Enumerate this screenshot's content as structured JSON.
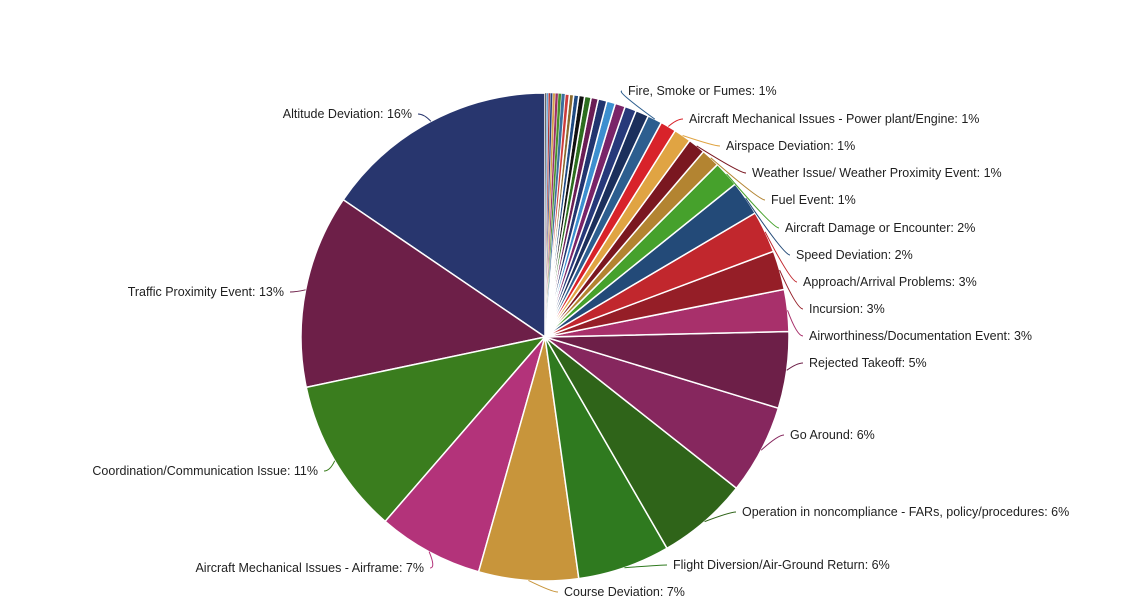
{
  "chart_data": {
    "type": "pie",
    "title": "",
    "slices": [
      {
        "label": "Altitude Deviation: 16%",
        "value": 16.2,
        "color": "#28366e"
      },
      {
        "label": "Traffic Proximity Event: 13%",
        "value": 13.4,
        "color": "#6d1f48"
      },
      {
        "label": "Coordination/Communication Issue: 11%",
        "value": 10.8,
        "color": "#3a7d1e"
      },
      {
        "label": "Aircraft Mechanical Issues - Airframe: 7%",
        "value": 7.3,
        "color": "#b3337a"
      },
      {
        "label": "Course Deviation: 7%",
        "value": 6.9,
        "color": "#c8953b"
      },
      {
        "label": "Flight Diversion/Air-Ground Return: 6%",
        "value": 6.4,
        "color": "#2f7a1f"
      },
      {
        "label": "Operation in noncompliance - FARs, policy/procedures: 6%",
        "value": 6.3,
        "color": "#2f6419"
      },
      {
        "label": "Go Around: 6%",
        "value": 6.2,
        "color": "#86275e"
      },
      {
        "label": "Rejected Takeoff: 5%",
        "value": 5.3,
        "color": "#6d1f48"
      },
      {
        "label": "Airworthiness/Documentation Event: 3%",
        "value": 2.9,
        "color": "#a8306b"
      },
      {
        "label": "Incursion: 3%",
        "value": 2.7,
        "color": "#951e27"
      },
      {
        "label": "Approach/Arrival Problems: 3%",
        "value": 2.9,
        "color": "#c1272d"
      },
      {
        "label": "Speed Deviation: 2%",
        "value": 2.4,
        "color": "#234a78"
      },
      {
        "label": "Aircraft Damage or Encounter: 2%",
        "value": 1.8,
        "color": "#46a12c"
      },
      {
        "label": "Fuel Event: 1%",
        "value": 1.3,
        "color": "#b38431"
      },
      {
        "label": "Weather Issue/ Weather Proximity Event: 1%",
        "value": 1.2,
        "color": "#7a1720"
      },
      {
        "label": "Airspace Deviation: 1%",
        "value": 1.2,
        "color": "#e0a443"
      },
      {
        "label": "Aircraft Mechanical Issues - Power plant/Engine: 1%",
        "value": 1.1,
        "color": "#d8232a"
      },
      {
        "label": "Fire, Smoke or Fumes: 1%",
        "value": 1.0,
        "color": "#2d5e8f"
      },
      {
        "label": "",
        "value": 0.9,
        "color": "#1b2f5c"
      },
      {
        "label": "",
        "value": 0.8,
        "color": "#27397a"
      },
      {
        "label": "",
        "value": 0.7,
        "color": "#7a2468"
      },
      {
        "label": "",
        "value": 0.6,
        "color": "#3d8fcf"
      },
      {
        "label": "",
        "value": 0.6,
        "color": "#22356f"
      },
      {
        "label": "",
        "value": 0.5,
        "color": "#6a1e55"
      },
      {
        "label": "",
        "value": 0.45,
        "color": "#2c6e1e"
      },
      {
        "label": "",
        "value": 0.4,
        "color": "#111111"
      },
      {
        "label": "",
        "value": 0.35,
        "color": "#1f4a82"
      },
      {
        "label": "",
        "value": 0.3,
        "color": "#8a6a2e"
      },
      {
        "label": "",
        "value": 0.3,
        "color": "#cc3b3b"
      },
      {
        "label": "",
        "value": 0.25,
        "color": "#3b6e9e"
      },
      {
        "label": "",
        "value": 0.22,
        "color": "#4a8f2a"
      },
      {
        "label": "",
        "value": 0.2,
        "color": "#9a2f66"
      },
      {
        "label": "",
        "value": 0.18,
        "color": "#d4a04a"
      },
      {
        "label": "",
        "value": 0.16,
        "color": "#2a3f7e"
      },
      {
        "label": "",
        "value": 0.14,
        "color": "#b03a3a"
      },
      {
        "label": "",
        "value": 0.12,
        "color": "#5a9ed6"
      },
      {
        "label": "",
        "value": 0.1,
        "color": "#444444"
      }
    ]
  }
}
